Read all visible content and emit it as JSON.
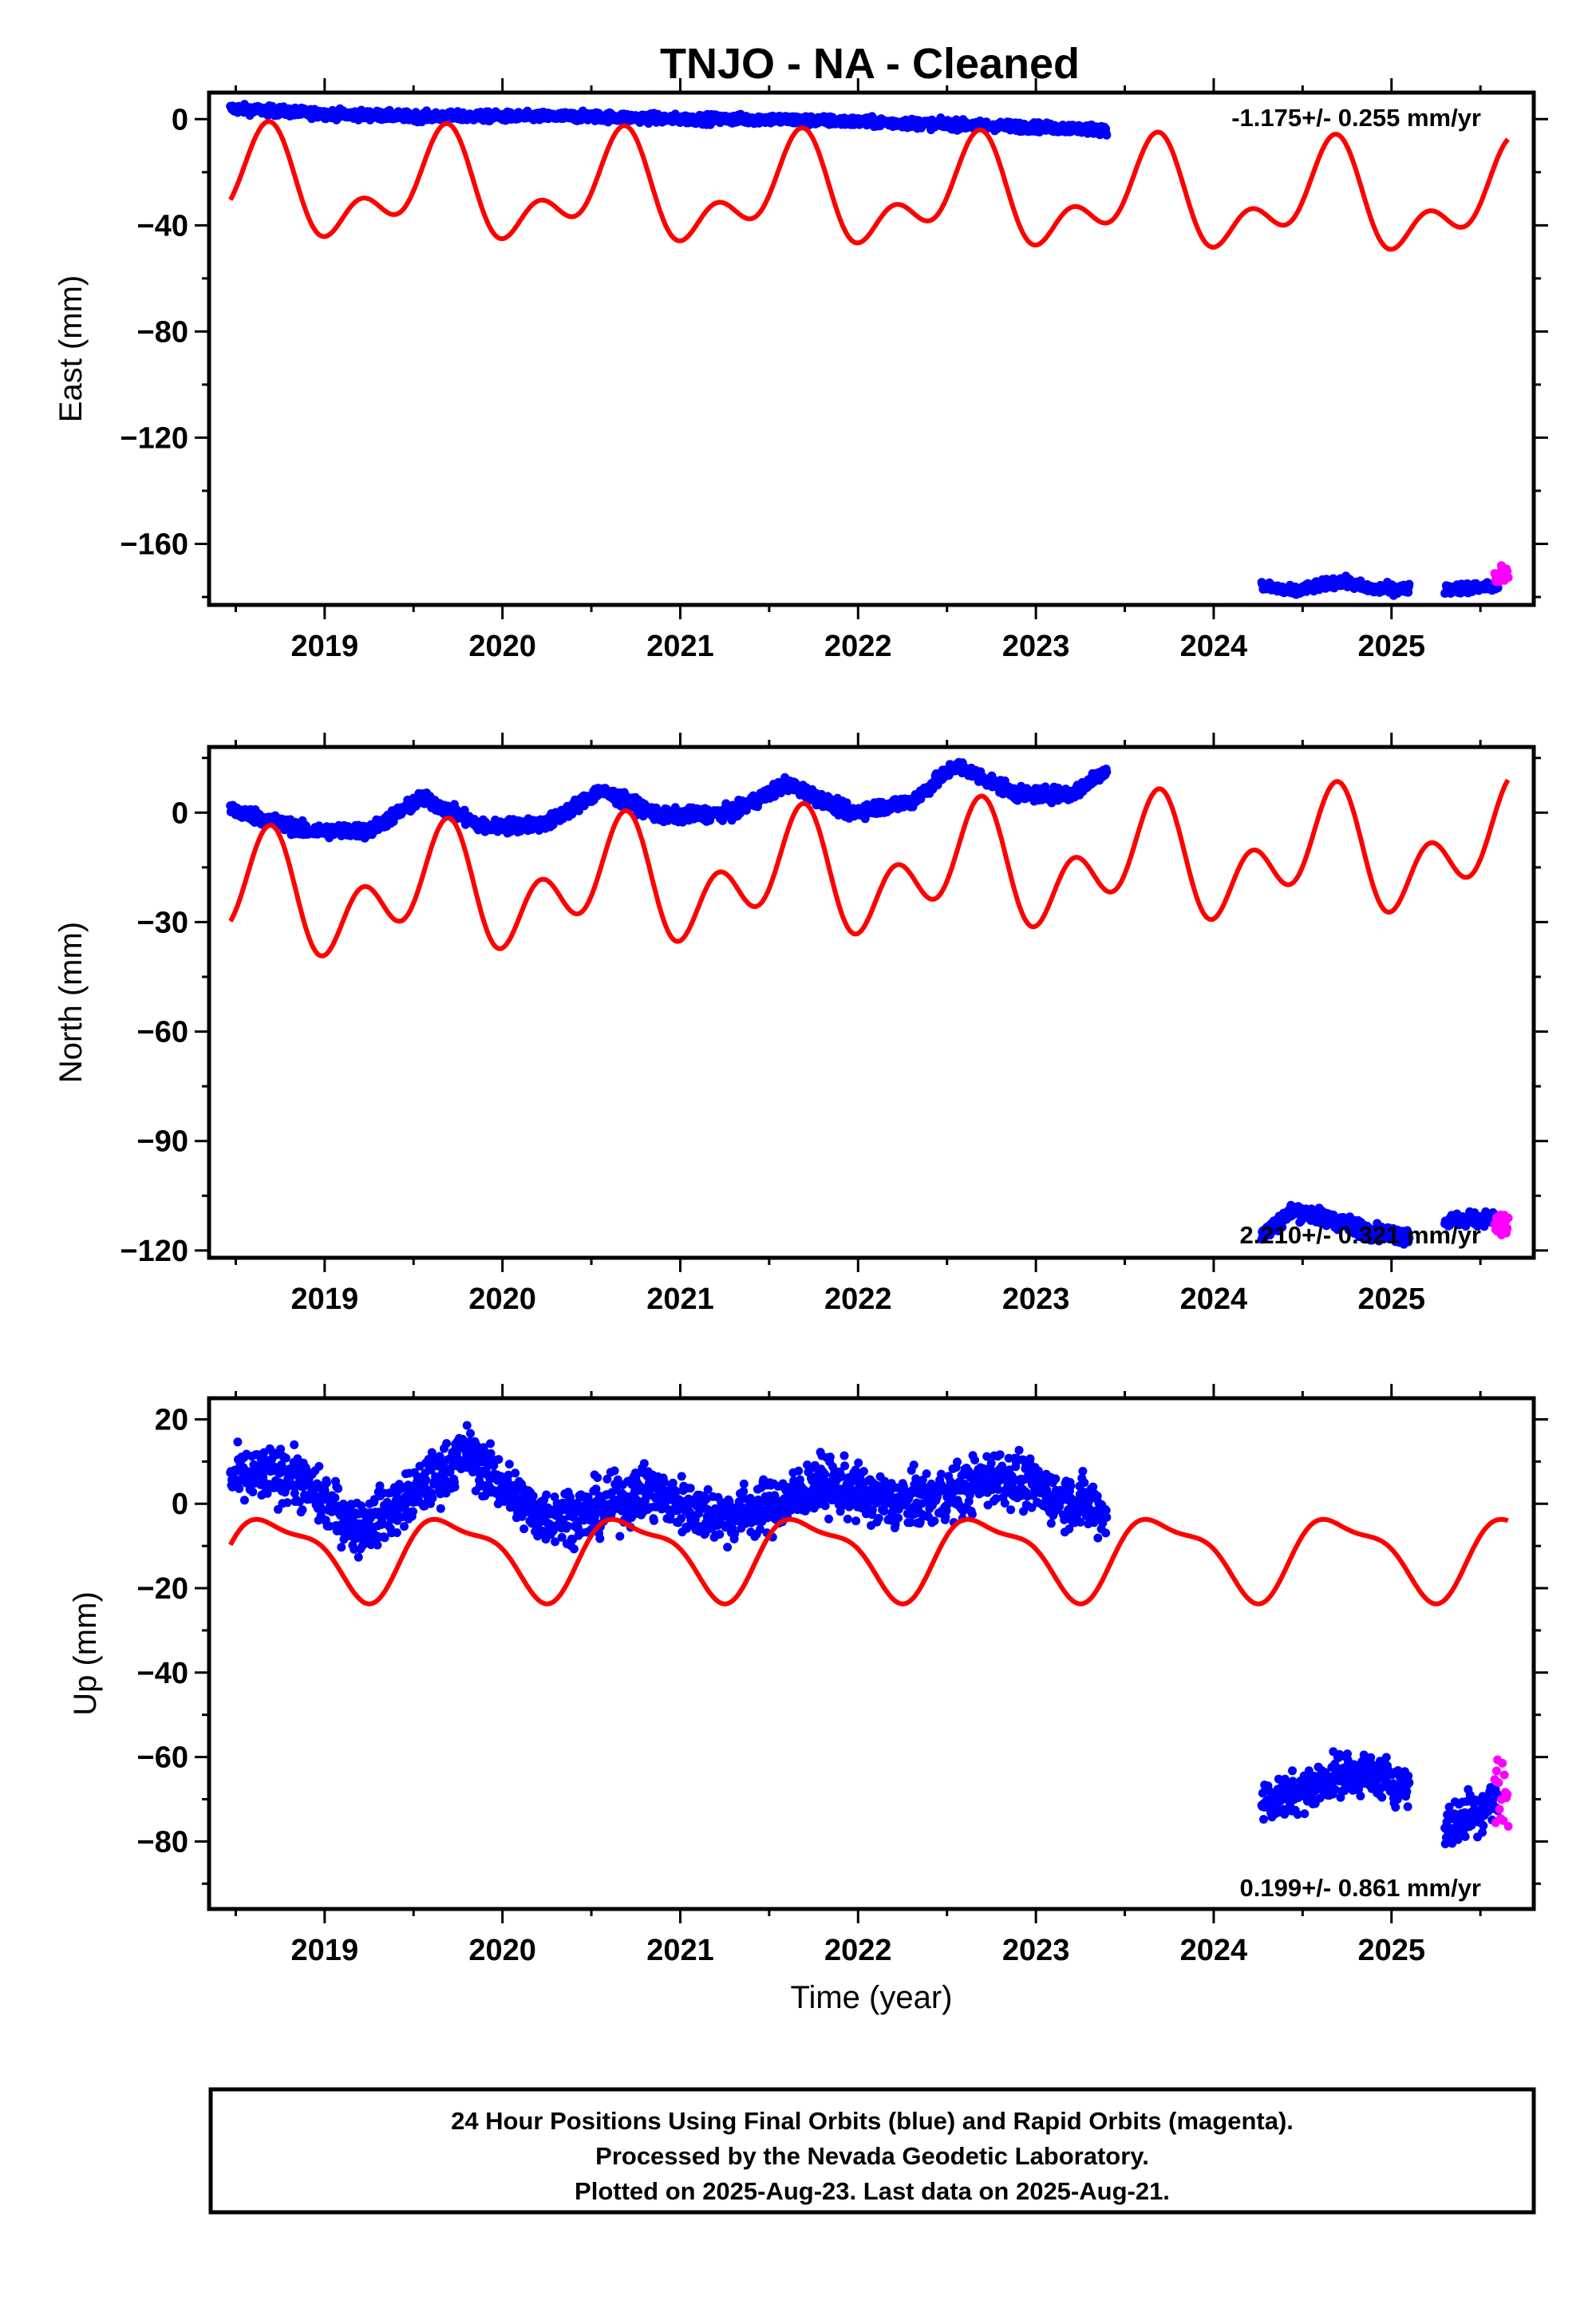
{
  "title": "TNJO  - NA - Cleaned",
  "colors": {
    "final": "#0000ff",
    "rapid": "#ff00ff",
    "model": "#ff0000",
    "frame": "#000000"
  },
  "footer": {
    "line1": "24 Hour Positions Using Final Orbits (blue) and Rapid Orbits (magenta).",
    "line2": "Processed by the Nevada Geodetic Laboratory.",
    "line3": "Plotted on 2025-Aug-23. Last data on 2025-Aug-21."
  },
  "chart_data": [
    {
      "type": "scatter",
      "component": "east",
      "ylabel": "East (mm)",
      "xlabel": "",
      "rate": "-1.175+/- 0.255 mm/yr",
      "xlim": [
        2018.35,
        2025.8
      ],
      "ylim": [
        -183,
        10
      ],
      "xticks": [
        2019,
        2020,
        2021,
        2022,
        2023,
        2024,
        2025
      ],
      "yticks": [
        0,
        -40,
        -80,
        -120,
        -160
      ],
      "final_segments": [
        {
          "x": [
            2018.47,
            2019.0,
            2019.5,
            2020.0,
            2020.5,
            2021.0,
            2021.5,
            2022.0,
            2022.5,
            2023.0,
            2023.4
          ],
          "y": [
            4,
            2,
            1,
            1,
            1,
            0,
            0,
            -1,
            -2,
            -3,
            -4
          ],
          "noise": 1.2
        },
        {
          "x": [
            2024.27,
            2024.45,
            2024.7,
            2024.9,
            2025.1
          ],
          "y": [
            -176,
            -178,
            -174,
            -177,
            -177
          ],
          "noise": 1.3
        },
        {
          "x": [
            2025.3,
            2025.6
          ],
          "y": [
            -177,
            -176
          ],
          "noise": 1.3
        }
      ],
      "rapid_segment": {
        "x": [
          2025.58,
          2025.66
        ],
        "y": [
          -172,
          -172
        ],
        "noise": 2.5
      },
      "seasonal_model": {
        "offset": -29,
        "annual_amp": 15,
        "annual_phase": 2.2,
        "semi_amp": 11,
        "semi_phase": -2.5,
        "trend": -0.8
      }
    },
    {
      "type": "scatter",
      "component": "north",
      "ylabel": "North (mm)",
      "xlabel": "",
      "rate": "2.210+/- 0.321 mm/yr",
      "xlim": [
        2018.35,
        2025.8
      ],
      "ylim": [
        -122,
        18
      ],
      "xticks": [
        2019,
        2020,
        2021,
        2022,
        2023,
        2024,
        2025
      ],
      "yticks": [
        0,
        -30,
        -60,
        -90,
        -120
      ],
      "final_segments": [
        {
          "x": [
            2018.47,
            2018.9,
            2019.25,
            2019.55,
            2019.9,
            2020.25,
            2020.55,
            2020.9,
            2021.3,
            2021.6,
            2021.95,
            2022.3,
            2022.55,
            2022.9,
            2023.2,
            2023.4
          ],
          "y": [
            1,
            -5,
            -5,
            4,
            -4,
            -3,
            6,
            -1,
            0,
            8,
            0,
            3,
            13,
            5,
            5,
            12
          ],
          "noise": 1.3
        },
        {
          "x": [
            2024.27,
            2024.45,
            2024.7,
            2024.9,
            2025.1
          ],
          "y": [
            -116,
            -109,
            -112,
            -115,
            -116
          ],
          "noise": 1.5
        },
        {
          "x": [
            2025.3,
            2025.6
          ],
          "y": [
            -112,
            -111
          ],
          "noise": 1.3
        }
      ],
      "rapid_segment": {
        "x": [
          2025.58,
          2025.66
        ],
        "y": [
          -113,
          -113
        ],
        "noise": 2.5
      },
      "seasonal_model": {
        "offset": -17,
        "annual_amp": 10,
        "annual_phase": 2.3,
        "semi_amp": 11,
        "semi_phase": -2.6,
        "trend": 2.0
      }
    },
    {
      "type": "scatter",
      "component": "up",
      "ylabel": "Up (mm)",
      "xlabel": "Time (year)",
      "rate": "0.199+/- 0.861 mm/yr",
      "xlim": [
        2018.35,
        2025.8
      ],
      "ylim": [
        -96,
        25
      ],
      "xticks": [
        2019,
        2020,
        2021,
        2022,
        2023,
        2024,
        2025
      ],
      "yticks": [
        20,
        0,
        -20,
        -40,
        -60,
        -80
      ],
      "final_segments": [
        {
          "x": [
            2018.47,
            2018.8,
            2019.2,
            2019.5,
            2019.8,
            2020.2,
            2020.5,
            2020.8,
            2021.2,
            2021.5,
            2021.8,
            2022.2,
            2022.5,
            2022.8,
            2023.1,
            2023.4
          ],
          "y": [
            6,
            7,
            -6,
            2,
            12,
            -3,
            -2,
            3,
            -3,
            -1,
            5,
            0,
            2,
            7,
            2,
            -2
          ],
          "noise": 4.5
        },
        {
          "x": [
            2024.27,
            2024.5,
            2024.7,
            2024.9,
            2025.1
          ],
          "y": [
            -71,
            -68,
            -64,
            -64,
            -67
          ],
          "noise": 3.5
        },
        {
          "x": [
            2025.3,
            2025.45,
            2025.6
          ],
          "y": [
            -77,
            -73,
            -70
          ],
          "noise": 4.0
        }
      ],
      "rapid_segment": {
        "x": [
          2025.58,
          2025.66
        ],
        "y": [
          -68,
          -68
        ],
        "noise": 9.0
      },
      "seasonal_model": {
        "offset": -12,
        "annual_amp": 9,
        "annual_phase": 1.75,
        "semi_amp": 3,
        "semi_phase": -0.3,
        "trend": 0
      }
    }
  ]
}
